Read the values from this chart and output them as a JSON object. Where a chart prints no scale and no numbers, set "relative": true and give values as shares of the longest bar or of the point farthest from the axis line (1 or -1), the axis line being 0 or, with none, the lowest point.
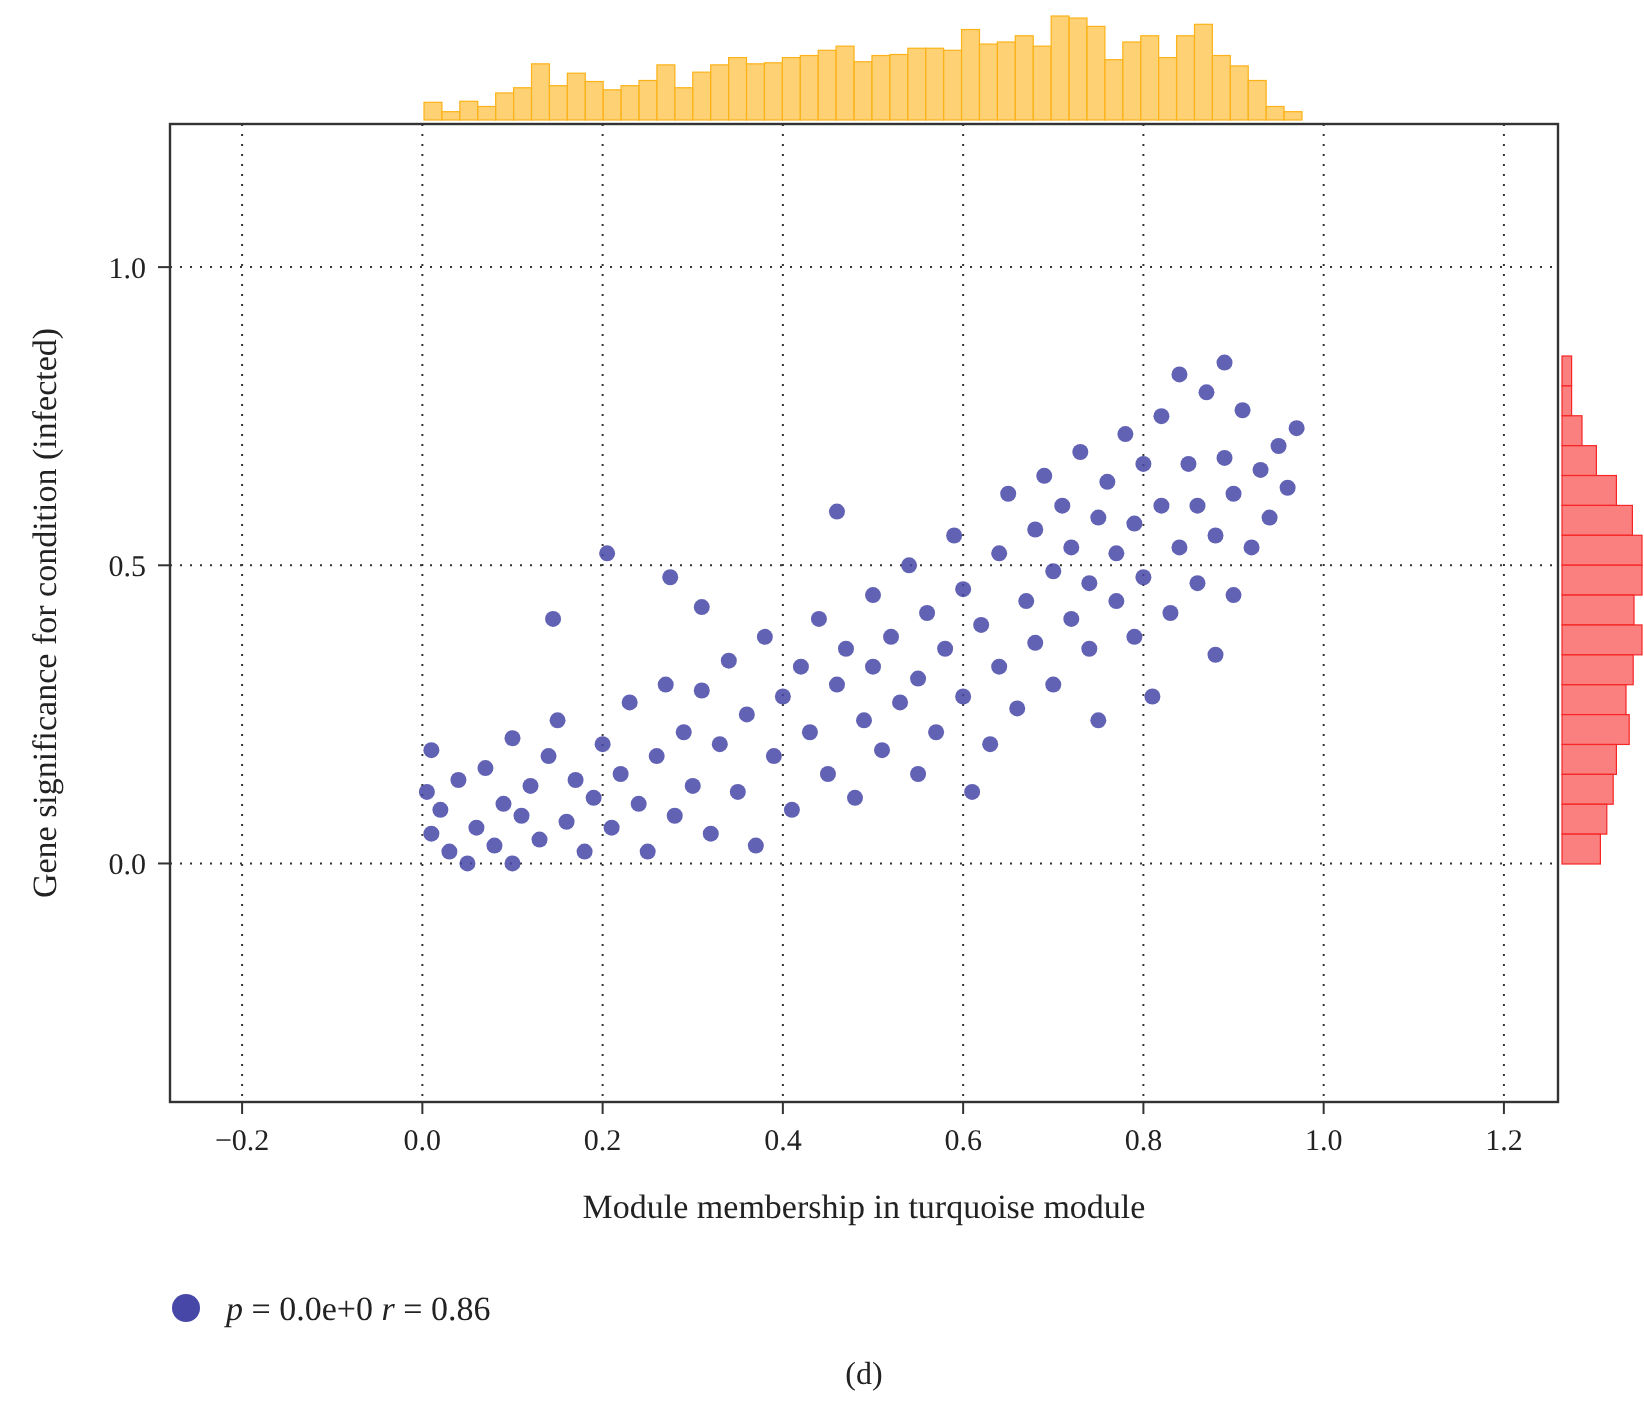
{
  "chart_data": [
    {
      "type": "scatter",
      "xlabel": "Module membership in turquoise module",
      "ylabel": "Gene significance for condition (infected)",
      "xlim": [
        -0.28,
        1.26
      ],
      "ylim": [
        -0.4,
        1.24
      ],
      "xticks": [
        {
          "value": -0.2,
          "label": "−0.2"
        },
        {
          "value": 0,
          "label": "0.0"
        },
        {
          "value": 0.2,
          "label": "0.2"
        },
        {
          "value": 0.4,
          "label": "0.4"
        },
        {
          "value": 0.6,
          "label": "0.6"
        },
        {
          "value": 0.8,
          "label": "0.8"
        },
        {
          "value": 1,
          "label": "1.0"
        },
        {
          "value": 1.2,
          "label": "1.2"
        }
      ],
      "yticks": [
        {
          "value": 0,
          "label": "0.0"
        },
        {
          "value": 0.5,
          "label": "0.5"
        },
        {
          "value": 1,
          "label": "1.0"
        }
      ],
      "grid": true,
      "legend": "bottom left",
      "marker": "circle",
      "annotations": [
        "(d)"
      ],
      "series": [
        {
          "name": "p = 0.0e+0 r = 0.86",
          "color": "#4747a8",
          "x": [
            0.01,
            0.005,
            0.01,
            0.02,
            0.03,
            0.04,
            0.05,
            0.06,
            0.07,
            0.08,
            0.09,
            0.1,
            0.1,
            0.11,
            0.12,
            0.13,
            0.14,
            0.145,
            0.15,
            0.16,
            0.17,
            0.18,
            0.19,
            0.2,
            0.205,
            0.21,
            0.22,
            0.23,
            0.24,
            0.25,
            0.26,
            0.27,
            0.275,
            0.28,
            0.29,
            0.3,
            0.31,
            0.31,
            0.32,
            0.33,
            0.34,
            0.35,
            0.36,
            0.37,
            0.38,
            0.39,
            0.4,
            0.41,
            0.42,
            0.43,
            0.44,
            0.45,
            0.46,
            0.46,
            0.47,
            0.48,
            0.49,
            0.5,
            0.5,
            0.51,
            0.52,
            0.53,
            0.54,
            0.55,
            0.55,
            0.56,
            0.57,
            0.58,
            0.59,
            0.6,
            0.6,
            0.61,
            0.62,
            0.63,
            0.64,
            0.64,
            0.65,
            0.66,
            0.67,
            0.68,
            0.68,
            0.69,
            0.7,
            0.7,
            0.71,
            0.72,
            0.72,
            0.73,
            0.74,
            0.74,
            0.75,
            0.75,
            0.76,
            0.77,
            0.77,
            0.78,
            0.79,
            0.79,
            0.8,
            0.8,
            0.81,
            0.82,
            0.82,
            0.83,
            0.84,
            0.84,
            0.85,
            0.86,
            0.86,
            0.87,
            0.88,
            0.88,
            0.89,
            0.89,
            0.9,
            0.9,
            0.91,
            0.92,
            0.93,
            0.94,
            0.95,
            0.97,
            0.96
          ],
          "values": [
            0.19,
            0.12,
            0.05,
            0.09,
            0.02,
            0.14,
            0.0,
            0.06,
            0.16,
            0.03,
            0.1,
            0.0,
            0.21,
            0.08,
            0.13,
            0.04,
            0.18,
            0.41,
            0.24,
            0.07,
            0.14,
            0.02,
            0.11,
            0.2,
            0.52,
            0.06,
            0.15,
            0.27,
            0.1,
            0.02,
            0.18,
            0.3,
            0.48,
            0.08,
            0.22,
            0.13,
            0.43,
            0.29,
            0.05,
            0.2,
            0.34,
            0.12,
            0.25,
            0.03,
            0.38,
            0.18,
            0.28,
            0.09,
            0.33,
            0.22,
            0.41,
            0.15,
            0.59,
            0.3,
            0.36,
            0.11,
            0.24,
            0.45,
            0.33,
            0.19,
            0.38,
            0.27,
            0.5,
            0.15,
            0.31,
            0.42,
            0.22,
            0.36,
            0.55,
            0.28,
            0.46,
            0.12,
            0.4,
            0.2,
            0.52,
            0.33,
            0.62,
            0.26,
            0.44,
            0.56,
            0.37,
            0.65,
            0.3,
            0.49,
            0.6,
            0.41,
            0.53,
            0.69,
            0.36,
            0.47,
            0.58,
            0.24,
            0.64,
            0.44,
            0.52,
            0.72,
            0.38,
            0.57,
            0.67,
            0.48,
            0.28,
            0.6,
            0.75,
            0.42,
            0.53,
            0.82,
            0.67,
            0.47,
            0.6,
            0.79,
            0.35,
            0.55,
            0.84,
            0.68,
            0.45,
            0.62,
            0.76,
            0.53,
            0.66,
            0.58,
            0.7,
            0.73,
            0.63
          ]
        }
      ]
    },
    {
      "type": "bar",
      "relative": true,
      "color": "#fdc95c",
      "categories": [
        null,
        null,
        null,
        null,
        null,
        null,
        null,
        null,
        null,
        null,
        null,
        null,
        null,
        null,
        null,
        null,
        null,
        null,
        null,
        null,
        null,
        null,
        null,
        null,
        null,
        null,
        null,
        null,
        null,
        null,
        null,
        null,
        null,
        null,
        null,
        null,
        null,
        null,
        null,
        null,
        null,
        null,
        null,
        null,
        null,
        null,
        null,
        null,
        null
      ],
      "values": [
        0.17,
        0.08,
        0.18,
        0.13,
        0.26,
        0.31,
        0.54,
        0.33,
        0.45,
        0.37,
        0.29,
        0.33,
        0.38,
        0.53,
        0.31,
        0.46,
        0.53,
        0.6,
        0.54,
        0.55,
        0.6,
        0.62,
        0.67,
        0.71,
        0.56,
        0.62,
        0.63,
        0.69,
        0.69,
        0.67,
        0.87,
        0.73,
        0.75,
        0.81,
        0.71,
        1.0,
        0.98,
        0.9,
        0.58,
        0.75,
        0.81,
        0.6,
        0.81,
        0.92,
        0.62,
        0.52,
        0.38,
        0.13,
        0.08
      ]
    },
    {
      "type": "bar",
      "relative": true,
      "orientation": "horizontal",
      "color": "#f96a6a",
      "categories": [
        null,
        null,
        null,
        null,
        null,
        null,
        null,
        null,
        null,
        null,
        null,
        null,
        null,
        null,
        null,
        null,
        null
      ],
      "values": [
        0.12,
        0.12,
        0.25,
        0.43,
        0.68,
        0.88,
        1.0,
        1.0,
        0.9,
        1.0,
        0.89,
        0.8,
        0.84,
        0.68,
        0.64,
        0.56,
        0.48
      ]
    }
  ]
}
